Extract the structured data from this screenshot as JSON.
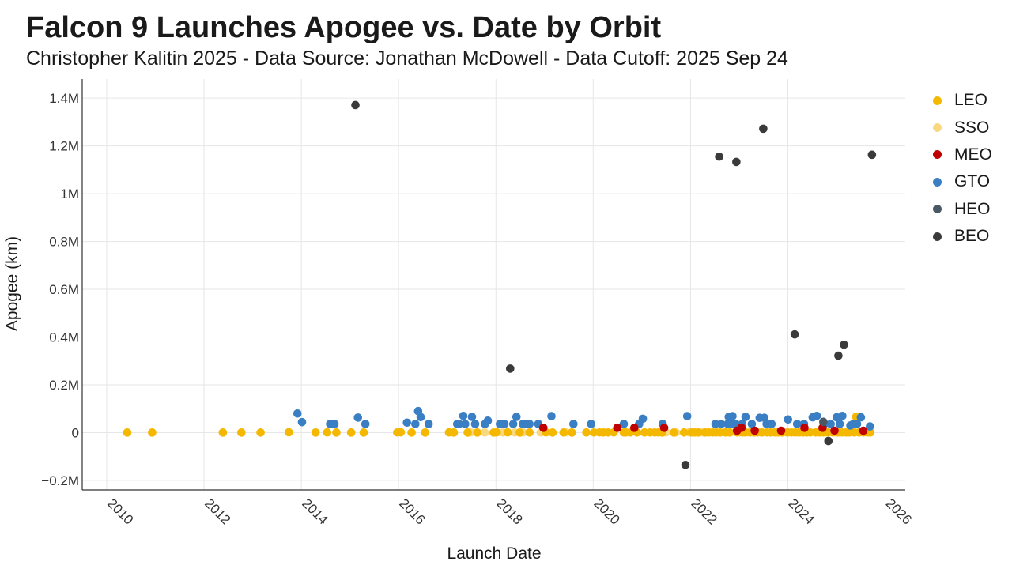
{
  "header": {
    "title": "Falcon 9 Launches Apogee vs. Date by Orbit",
    "subtitle": "Christopher Kalitin 2025 - Data Source: Jonathan McDowell - Data Cutoff: 2025 Sep 24"
  },
  "chart_data": {
    "type": "scatter",
    "title": "Falcon 9 Launches Apogee vs. Date by Orbit",
    "subtitle": "Christopher Kalitin 2025 - Data Source: Jonathan McDowell - Data Cutoff: 2025 Sep 24",
    "xlabel": "Launch Date",
    "ylabel": "Apogee (km)",
    "x_type": "date",
    "xlim": [
      "2009-07-01",
      "2026-06-01"
    ],
    "ylim": [
      -240000,
      1480000
    ],
    "x_ticks": [
      "2010",
      "2012",
      "2014",
      "2016",
      "2018",
      "2020",
      "2022",
      "2024",
      "2026"
    ],
    "y_ticks": [
      {
        "value": -200000,
        "label": "−0.2M"
      },
      {
        "value": 0,
        "label": "0"
      },
      {
        "value": 200000,
        "label": "0.2M"
      },
      {
        "value": 400000,
        "label": "0.4M"
      },
      {
        "value": 600000,
        "label": "0.6M"
      },
      {
        "value": 800000,
        "label": "0.8M"
      },
      {
        "value": 1000000,
        "label": "1M"
      },
      {
        "value": 1200000,
        "label": "1.2M"
      },
      {
        "value": 1400000,
        "label": "1.4M"
      }
    ],
    "grid": true,
    "legend_position": "right",
    "series": [
      {
        "name": "LEO",
        "color": "#f5b800",
        "points": [
          [
            "2010-06-04",
            300
          ],
          [
            "2010-12-08",
            300
          ],
          [
            "2012-05-22",
            400
          ],
          [
            "2012-10-08",
            400
          ],
          [
            "2013-03-01",
            400
          ],
          [
            "2013-09-29",
            1500
          ],
          [
            "2014-04-18",
            400
          ],
          [
            "2014-07-14",
            800
          ],
          [
            "2014-09-21",
            400
          ],
          [
            "2015-01-10",
            400
          ],
          [
            "2015-04-14",
            400
          ],
          [
            "2015-12-22",
            600
          ],
          [
            "2016-01-17",
            1300
          ],
          [
            "2016-04-08",
            400
          ],
          [
            "2016-07-18",
            400
          ],
          [
            "2017-01-14",
            700
          ],
          [
            "2017-02-19",
            400
          ],
          [
            "2017-06-03",
            400
          ],
          [
            "2017-08-14",
            400
          ],
          [
            "2017-12-15",
            400
          ],
          [
            "2018-01-07",
            1000
          ],
          [
            "2018-03-30",
            700
          ],
          [
            "2018-06-29",
            400
          ],
          [
            "2018-09-10",
            500
          ],
          [
            "2019-01-11",
            700
          ],
          [
            "2019-03-02",
            400
          ],
          [
            "2019-05-24",
            550
          ],
          [
            "2019-07-25",
            400
          ],
          [
            "2019-11-11",
            550
          ],
          [
            "2020-01-07",
            550
          ],
          [
            "2020-02-17",
            550
          ],
          [
            "2020-03-18",
            550
          ],
          [
            "2020-04-22",
            550
          ],
          [
            "2020-06-03",
            550
          ],
          [
            "2020-08-18",
            550
          ],
          [
            "2020-09-03",
            550
          ],
          [
            "2020-10-06",
            550
          ],
          [
            "2020-11-25",
            550
          ],
          [
            "2021-01-20",
            550
          ],
          [
            "2021-03-04",
            550
          ],
          [
            "2021-04-07",
            550
          ],
          [
            "2021-05-04",
            550
          ],
          [
            "2021-06-03",
            400
          ],
          [
            "2021-08-29",
            400
          ],
          [
            "2021-11-13",
            550
          ],
          [
            "2022-01-06",
            550
          ],
          [
            "2022-02-03",
            550
          ],
          [
            "2022-03-03",
            550
          ],
          [
            "2022-04-21",
            550
          ],
          [
            "2022-05-14",
            550
          ],
          [
            "2022-06-17",
            550
          ],
          [
            "2022-07-10",
            550
          ],
          [
            "2022-08-12",
            550
          ],
          [
            "2022-09-24",
            550
          ],
          [
            "2022-10-20",
            550
          ],
          [
            "2022-12-17",
            550
          ],
          [
            "2023-01-26",
            550
          ],
          [
            "2023-02-17",
            550
          ],
          [
            "2023-03-24",
            550
          ],
          [
            "2023-04-27",
            550
          ],
          [
            "2023-05-19",
            550
          ],
          [
            "2023-06-22",
            550
          ],
          [
            "2023-07-28",
            550
          ],
          [
            "2023-08-26",
            550
          ],
          [
            "2023-09-24",
            550
          ],
          [
            "2023-10-21",
            550
          ],
          [
            "2023-11-22",
            550
          ],
          [
            "2023-12-28",
            550
          ],
          [
            "2024-01-28",
            550
          ],
          [
            "2024-02-25",
            550
          ],
          [
            "2024-03-24",
            550
          ],
          [
            "2024-04-28",
            550
          ],
          [
            "2024-05-22",
            550
          ],
          [
            "2024-06-18",
            550
          ],
          [
            "2024-07-27",
            550
          ],
          [
            "2024-08-31",
            550
          ],
          [
            "2024-09-25",
            550
          ],
          [
            "2024-10-30",
            550
          ],
          [
            "2024-12-04",
            550
          ],
          [
            "2025-01-13",
            550
          ],
          [
            "2025-02-11",
            550
          ],
          [
            "2025-03-14",
            550
          ],
          [
            "2025-04-07",
            550
          ],
          [
            "2025-05-13",
            550
          ],
          [
            "2025-05-28",
            66000
          ],
          [
            "2025-06-18",
            550
          ],
          [
            "2025-07-22",
            550
          ],
          [
            "2025-08-18",
            550
          ],
          [
            "2025-09-12",
            550
          ]
        ]
      },
      {
        "name": "SSO",
        "color": "#fad97e",
        "points": [
          [
            "2016-01-17",
            1340
          ],
          [
            "2017-06-25",
            625
          ],
          [
            "2017-10-09",
            625
          ],
          [
            "2018-02-22",
            514
          ],
          [
            "2018-05-22",
            500
          ],
          [
            "2018-07-25",
            625
          ],
          [
            "2018-12-03",
            600
          ],
          [
            "2019-06-12",
            600
          ],
          [
            "2020-08-30",
            600
          ],
          [
            "2021-01-24",
            525
          ],
          [
            "2021-06-30",
            525
          ],
          [
            "2021-09-14",
            570
          ],
          [
            "2021-12-18",
            570
          ],
          [
            "2022-01-13",
            525
          ],
          [
            "2022-02-25",
            560
          ],
          [
            "2022-04-01",
            525
          ],
          [
            "2022-05-25",
            525
          ],
          [
            "2022-07-22",
            560
          ],
          [
            "2022-09-11",
            560
          ],
          [
            "2022-10-28",
            560
          ],
          [
            "2022-12-16",
            525
          ],
          [
            "2023-01-03",
            525
          ],
          [
            "2023-03-17",
            560
          ],
          [
            "2023-04-15",
            525
          ],
          [
            "2023-06-12",
            525
          ],
          [
            "2023-08-22",
            560
          ],
          [
            "2023-10-12",
            560
          ],
          [
            "2023-11-11",
            525
          ],
          [
            "2024-01-03",
            525
          ],
          [
            "2024-03-04",
            560
          ],
          [
            "2024-04-07",
            525
          ],
          [
            "2024-05-28",
            560
          ],
          [
            "2024-08-16",
            525
          ],
          [
            "2024-10-19",
            560
          ],
          [
            "2024-12-21",
            525
          ],
          [
            "2025-01-14",
            525
          ],
          [
            "2025-03-15",
            560
          ],
          [
            "2025-05-16",
            525
          ],
          [
            "2025-06-23",
            525
          ],
          [
            "2025-08-26",
            560
          ]
        ]
      },
      {
        "name": "MEO",
        "color": "#c00000",
        "points": [
          [
            "2018-12-23",
            20200
          ],
          [
            "2020-06-30",
            20200
          ],
          [
            "2020-11-05",
            20200
          ],
          [
            "2021-06-17",
            20200
          ],
          [
            "2022-12-16",
            8000
          ],
          [
            "2023-01-18",
            20200
          ],
          [
            "2023-04-28",
            8000
          ],
          [
            "2023-11-12",
            8000
          ],
          [
            "2024-05-05",
            20200
          ],
          [
            "2024-09-18",
            20200
          ],
          [
            "2024-12-17",
            8000
          ],
          [
            "2025-07-21",
            8000
          ]
        ]
      },
      {
        "name": "GTO",
        "color": "#3a7fc4",
        "points": [
          [
            "2013-12-03",
            80000
          ],
          [
            "2014-01-06",
            44000
          ],
          [
            "2014-08-05",
            36000
          ],
          [
            "2014-09-07",
            36000
          ],
          [
            "2015-03-02",
            63000
          ],
          [
            "2015-04-27",
            36000
          ],
          [
            "2016-03-04",
            42000
          ],
          [
            "2016-05-06",
            36000
          ],
          [
            "2016-05-27",
            90000
          ],
          [
            "2016-06-15",
            65000
          ],
          [
            "2016-08-14",
            36000
          ],
          [
            "2017-03-16",
            36000
          ],
          [
            "2017-03-30",
            36000
          ],
          [
            "2017-05-01",
            70000
          ],
          [
            "2017-05-15",
            36000
          ],
          [
            "2017-07-05",
            66000
          ],
          [
            "2017-07-29",
            36000
          ],
          [
            "2017-10-11",
            36000
          ],
          [
            "2017-11-01",
            50000
          ],
          [
            "2018-01-31",
            36000
          ],
          [
            "2018-03-06",
            36000
          ],
          [
            "2018-05-11",
            36000
          ],
          [
            "2018-06-04",
            66000
          ],
          [
            "2018-07-22",
            36000
          ],
          [
            "2018-08-07",
            36000
          ],
          [
            "2018-09-10",
            36000
          ],
          [
            "2018-11-15",
            36000
          ],
          [
            "2019-02-22",
            69000
          ],
          [
            "2019-08-06",
            36000
          ],
          [
            "2019-12-17",
            36000
          ],
          [
            "2020-08-18",
            36000
          ],
          [
            "2020-12-11",
            36000
          ],
          [
            "2021-01-08",
            58000
          ],
          [
            "2021-06-06",
            36000
          ],
          [
            "2021-12-07",
            69000
          ],
          [
            "2022-07-07",
            36000
          ],
          [
            "2022-08-19",
            36000
          ],
          [
            "2022-10-08",
            36000
          ],
          [
            "2022-10-15",
            66000
          ],
          [
            "2022-11-01",
            36000
          ],
          [
            "2022-11-12",
            69000
          ],
          [
            "2022-12-06",
            36000
          ],
          [
            "2023-01-24",
            36000
          ],
          [
            "2023-02-18",
            66000
          ],
          [
            "2023-04-06",
            36000
          ],
          [
            "2023-06-04",
            62000
          ],
          [
            "2023-07-09",
            62000
          ],
          [
            "2023-07-26",
            36000
          ],
          [
            "2023-09-01",
            36000
          ],
          [
            "2024-01-03",
            55000
          ],
          [
            "2024-03-11",
            36000
          ],
          [
            "2024-05-02",
            36000
          ],
          [
            "2024-07-06",
            64000
          ],
          [
            "2024-08-06",
            70000
          ],
          [
            "2024-10-01",
            36000
          ],
          [
            "2024-11-18",
            36000
          ],
          [
            "2025-01-02",
            64000
          ],
          [
            "2025-01-25",
            36000
          ],
          [
            "2025-02-14",
            70000
          ],
          [
            "2025-04-15",
            30000
          ],
          [
            "2025-05-07",
            36000
          ],
          [
            "2025-06-04",
            36000
          ],
          [
            "2025-07-03",
            64000
          ],
          [
            "2025-09-09",
            26000
          ]
        ]
      },
      {
        "name": "HEO",
        "color": "#4a5866",
        "points": [
          [
            "2024-09-24",
            45000
          ]
        ]
      },
      {
        "name": "BEO",
        "color": "#3a3a3a",
        "points": [
          [
            "2015-02-11",
            1371000
          ],
          [
            "2018-04-18",
            268000
          ],
          [
            "2021-11-24",
            -135000
          ],
          [
            "2022-08-04",
            1155000
          ],
          [
            "2022-12-11",
            1133000
          ],
          [
            "2023-07-01",
            1272000
          ],
          [
            "2024-02-22",
            411000
          ],
          [
            "2024-11-01",
            -35000
          ],
          [
            "2025-01-15",
            322000
          ],
          [
            "2025-02-26",
            368000
          ],
          [
            "2025-09-24",
            1163000
          ]
        ]
      }
    ]
  }
}
